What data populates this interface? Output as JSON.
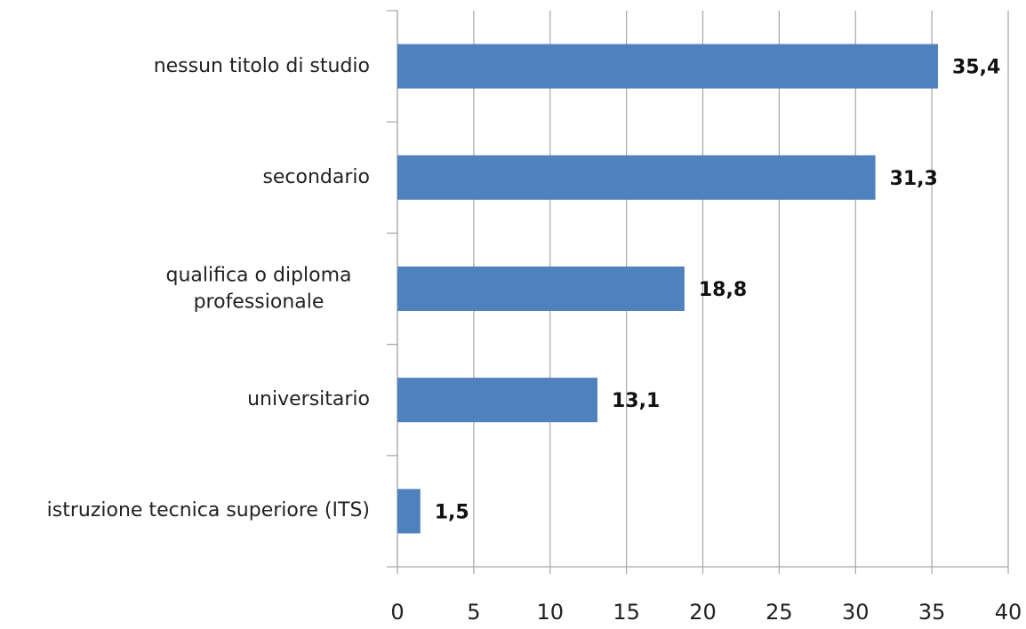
{
  "chart_data": {
    "type": "bar",
    "orientation": "horizontal",
    "categories": [
      "nessun titolo di studio",
      "secondario",
      "qualifica o diploma professionale",
      "universitario",
      "istruzione tecnica superiore (ITS)"
    ],
    "values": [
      35.4,
      31.3,
      18.8,
      13.1,
      1.5
    ],
    "value_labels": [
      "35,4",
      "31,3",
      "18,8",
      "13,1",
      "1,5"
    ],
    "color": "#4f81bd",
    "xlim": [
      0,
      40
    ],
    "xticks": [
      0,
      5,
      10,
      15,
      20,
      25,
      30,
      35,
      40
    ],
    "grid": true
  }
}
